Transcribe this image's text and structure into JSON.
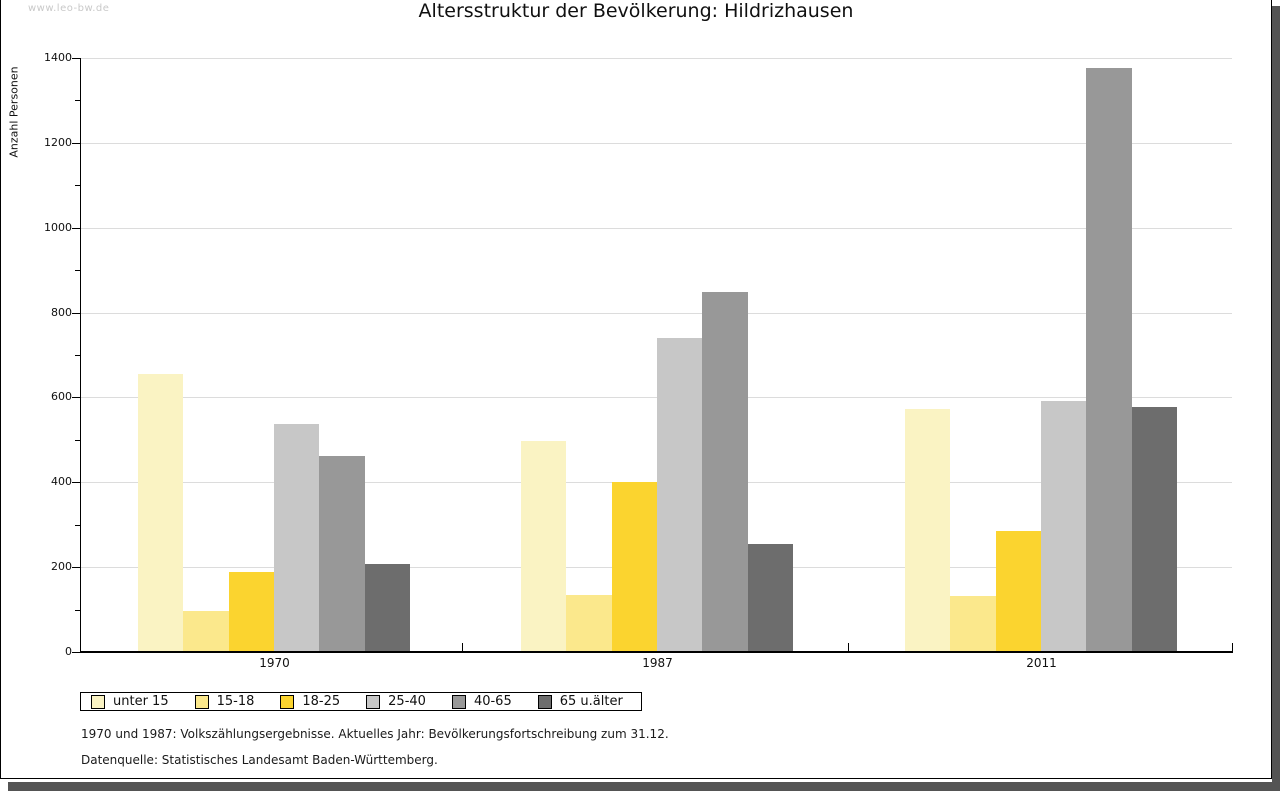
{
  "watermark": "www.leo-bw.de",
  "title": "Altersstruktur der Bevölkerung: Hildrizhausen",
  "chart_data": {
    "type": "bar",
    "title": "Altersstruktur der Bevölkerung: Hildrizhausen",
    "xlabel": "",
    "ylabel": "Anzahl Personen",
    "categories": [
      "1970",
      "1987",
      "2011"
    ],
    "series": [
      {
        "name": "unter 15",
        "color": "#FAF3C3",
        "values": [
          653,
          494,
          570
        ]
      },
      {
        "name": "15-18",
        "color": "#FBE88C",
        "values": [
          95,
          131,
          130
        ]
      },
      {
        "name": "18-25",
        "color": "#FBD42F",
        "values": [
          186,
          398,
          282
        ]
      },
      {
        "name": "25-40",
        "color": "#C7C7C7",
        "values": [
          535,
          737,
          590
        ]
      },
      {
        "name": "40-65",
        "color": "#989898",
        "values": [
          460,
          845,
          1375
        ]
      },
      {
        "name": "65 u.älter",
        "color": "#6D6D6D",
        "values": [
          205,
          252,
          576
        ]
      }
    ],
    "ylim": [
      0,
      1400
    ],
    "ytick_step": 200,
    "yminor_step": 100,
    "grid": true,
    "legend_position": "bottom-left"
  },
  "footer": {
    "line1": "1970 und 1987: Volkszählungsergebnisse. Aktuelles Jahr: Bevölkerungsfortschreibung zum 31.12.",
    "line2": "Datenquelle: Statistisches Landesamt Baden-Württemberg."
  }
}
